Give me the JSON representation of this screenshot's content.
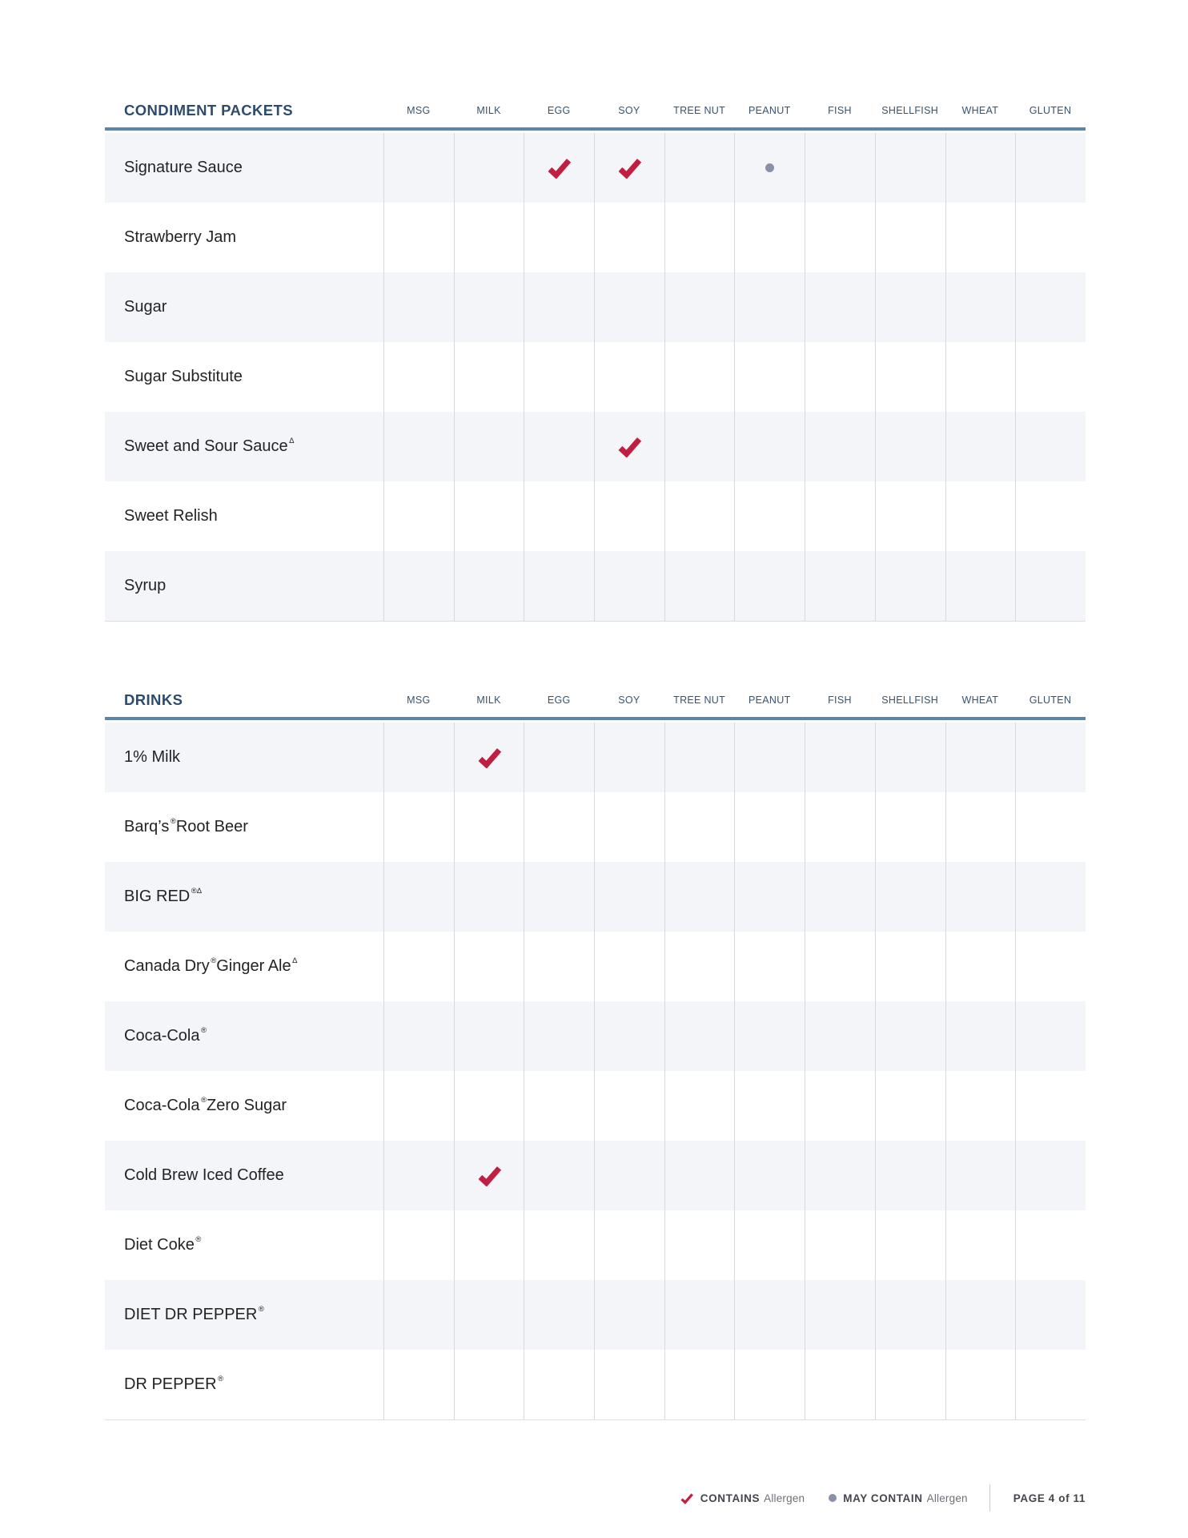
{
  "columns": [
    "MSG",
    "MILK",
    "EGG",
    "SOY",
    "TREE NUT",
    "PEANUT",
    "FISH",
    "SHELLFISH",
    "WHEAT",
    "GLUTEN"
  ],
  "tables": [
    {
      "title": "CONDIMENT PACKETS",
      "rows": [
        {
          "name": [
            {
              "text": "Signature Sauce",
              "sup": false
            }
          ],
          "contains": [
            "EGG",
            "SOY"
          ],
          "may_contain": [
            "PEANUT"
          ]
        },
        {
          "name": [
            {
              "text": "Strawberry Jam",
              "sup": false
            }
          ],
          "contains": [],
          "may_contain": []
        },
        {
          "name": [
            {
              "text": "Sugar",
              "sup": false
            }
          ],
          "contains": [],
          "may_contain": []
        },
        {
          "name": [
            {
              "text": "Sugar Substitute",
              "sup": false
            }
          ],
          "contains": [],
          "may_contain": []
        },
        {
          "name": [
            {
              "text": "Sweet and Sour Sauce",
              "sup": false
            },
            {
              "text": "Δ",
              "sup": true
            }
          ],
          "contains": [
            "SOY"
          ],
          "may_contain": []
        },
        {
          "name": [
            {
              "text": "Sweet Relish",
              "sup": false
            }
          ],
          "contains": [],
          "may_contain": []
        },
        {
          "name": [
            {
              "text": "Syrup",
              "sup": false
            }
          ],
          "contains": [],
          "may_contain": []
        }
      ]
    },
    {
      "title": "DRINKS",
      "rows": [
        {
          "name": [
            {
              "text": "1% Milk",
              "sup": false
            }
          ],
          "contains": [
            "MILK"
          ],
          "may_contain": []
        },
        {
          "name": [
            {
              "text": "Barq’s",
              "sup": false
            },
            {
              "text": "®",
              "sup": true
            },
            {
              "text": " Root Beer",
              "sup": false
            }
          ],
          "contains": [],
          "may_contain": []
        },
        {
          "name": [
            {
              "text": "BIG RED",
              "sup": false
            },
            {
              "text": "®Δ",
              "sup": true
            }
          ],
          "contains": [],
          "may_contain": []
        },
        {
          "name": [
            {
              "text": "Canada Dry",
              "sup": false
            },
            {
              "text": "®",
              "sup": true
            },
            {
              "text": " Ginger Ale",
              "sup": false
            },
            {
              "text": "Δ",
              "sup": true
            }
          ],
          "contains": [],
          "may_contain": []
        },
        {
          "name": [
            {
              "text": "Coca-Cola",
              "sup": false
            },
            {
              "text": "®",
              "sup": true
            }
          ],
          "contains": [],
          "may_contain": []
        },
        {
          "name": [
            {
              "text": "Coca-Cola",
              "sup": false
            },
            {
              "text": "®",
              "sup": true
            },
            {
              "text": " Zero Sugar",
              "sup": false
            }
          ],
          "contains": [],
          "may_contain": []
        },
        {
          "name": [
            {
              "text": "Cold Brew Iced Coffee",
              "sup": false
            }
          ],
          "contains": [
            "MILK"
          ],
          "may_contain": []
        },
        {
          "name": [
            {
              "text": "Diet Coke",
              "sup": false
            },
            {
              "text": "®",
              "sup": true
            }
          ],
          "contains": [],
          "may_contain": []
        },
        {
          "name": [
            {
              "text": "DIET DR PEPPER",
              "sup": false
            },
            {
              "text": "®",
              "sup": true
            }
          ],
          "contains": [],
          "may_contain": []
        },
        {
          "name": [
            {
              "text": "DR PEPPER",
              "sup": false
            },
            {
              "text": "®",
              "sup": true
            }
          ],
          "contains": [],
          "may_contain": []
        }
      ]
    }
  ],
  "legend": {
    "contains_label": "CONTAINS",
    "contains_suffix": "Allergen",
    "may_contain_label": "MAY CONTAIN",
    "may_contain_suffix": "Allergen"
  },
  "page_indicator": "PAGE 4 of 11",
  "icons": {
    "contains": "check-icon",
    "may_contain": "dot-icon"
  },
  "colors": {
    "accent_blue": "#5886af",
    "heading_navy": "#2d4b6d",
    "column_header_blue": "#37536f",
    "check_crimson": "#c01f41",
    "may_contain_dot_gray": "#8a90a8",
    "row_stripe": "#f3f5f9",
    "grid_line": "#d7d9dc"
  }
}
